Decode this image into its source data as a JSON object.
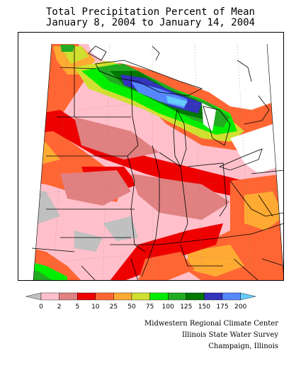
{
  "title": {
    "line1": "Total Precipitation Percent of Mean",
    "line2": "January 8, 2004 to January 14, 2004"
  },
  "legend": {
    "bins": [
      {
        "color": "#c0c0c0"
      },
      {
        "color": "#ffc0cb"
      },
      {
        "color": "#e08080"
      },
      {
        "color": "#ee0000"
      },
      {
        "color": "#ff6633"
      },
      {
        "color": "#ffaa33"
      },
      {
        "color": "#d0e030"
      },
      {
        "color": "#00ee00"
      },
      {
        "color": "#22aa22"
      },
      {
        "color": "#007700"
      },
      {
        "color": "#3333bb"
      },
      {
        "color": "#5588ff"
      },
      {
        "color": "#66ccff"
      }
    ],
    "labels": [
      "0",
      "2",
      "5",
      "10",
      "25",
      "50",
      "75",
      "100",
      "125",
      "150",
      "175",
      "200"
    ]
  },
  "credits": {
    "line1": "Midwestern Regional Climate Center",
    "line2": "Illinois State Water Survey",
    "line3": "Champaign, Illinois"
  }
}
